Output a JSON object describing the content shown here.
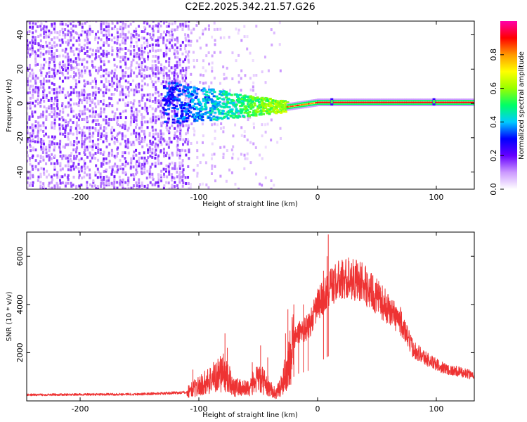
{
  "chart_data": [
    {
      "type": "heatmap",
      "title": "C2E2.2025.342.21.57.G26",
      "xlabel": "Height of straight line (km)",
      "ylabel": "Frequency (Hz)",
      "xlim": [
        -245,
        132
      ],
      "ylim": [
        -50,
        48
      ],
      "xticks": [
        -200,
        -100,
        0,
        100
      ],
      "yticks": [
        -40,
        -20,
        0,
        20,
        40
      ],
      "colorbar": {
        "label": "Normalized spectral amplitude",
        "range": [
          0,
          1
        ],
        "ticks": [
          0.0,
          0.2,
          0.4,
          0.6,
          0.8
        ],
        "colors": [
          "#ffffff",
          "#cc99ff",
          "#6600ff",
          "#0000ff",
          "#00ccff",
          "#00ff66",
          "#99ff00",
          "#ffff00",
          "#ff9900",
          "#ff0000",
          "#ff00aa"
        ]
      },
      "features": {
        "broadband_noise_x_range": [
          -245,
          -107
        ],
        "sparse_noise_x_range": [
          -107,
          -30
        ],
        "signal_band_freq_hz": 0,
        "signal_band_start_km": -130,
        "strong_line_start_km": -25,
        "peaks_km": [
          12,
          98
        ]
      }
    },
    {
      "type": "line",
      "xlabel": "Height of straight line (km)",
      "ylabel": "SNR (10 * v/v)",
      "xlim": [
        -245,
        132
      ],
      "ylim": [
        0,
        7000
      ],
      "xticks": [
        -200,
        -100,
        0,
        100
      ],
      "yticks": [
        2000,
        4000,
        6000
      ],
      "series": [
        {
          "name": "SNR",
          "color": "#ee3333",
          "envelope_x": [
            -245,
            -150,
            -110,
            -105,
            -100,
            -90,
            -80,
            -75,
            -70,
            -65,
            -60,
            -55,
            -50,
            -45,
            -40,
            -35,
            -30,
            -25,
            -20,
            -15,
            -10,
            -5,
            0,
            5,
            10,
            15,
            20,
            25,
            30,
            35,
            40,
            50,
            60,
            70,
            75,
            80,
            90,
            100,
            110,
            120,
            132
          ],
          "envelope_y": [
            250,
            280,
            350,
            500,
            600,
            900,
            1200,
            900,
            600,
            550,
            500,
            700,
            900,
            800,
            500,
            300,
            700,
            1500,
            2500,
            2900,
            3000,
            3300,
            4000,
            4300,
            4700,
            4900,
            5000,
            5100,
            5050,
            5000,
            4800,
            4300,
            3800,
            3300,
            2700,
            2200,
            1800,
            1500,
            1300,
            1200,
            1050
          ],
          "spikes": [
            {
              "x": -105,
              "y": 1300
            },
            {
              "x": -78,
              "y": 2800
            },
            {
              "x": -76,
              "y": 2200
            },
            {
              "x": -55,
              "y": 1600
            },
            {
              "x": -48,
              "y": 2300
            },
            {
              "x": -42,
              "y": 1800
            },
            {
              "x": -27,
              "y": 2800
            },
            {
              "x": -25,
              "y": 3800
            },
            {
              "x": -20,
              "y": 4000
            },
            {
              "x": -16,
              "y": 3200
            },
            {
              "x": -12,
              "y": 4000
            },
            {
              "x": -8,
              "y": 3600
            },
            {
              "x": 5,
              "y": 5400
            },
            {
              "x": 8,
              "y": 6000
            },
            {
              "x": 9,
              "y": 6900
            }
          ]
        }
      ]
    }
  ]
}
